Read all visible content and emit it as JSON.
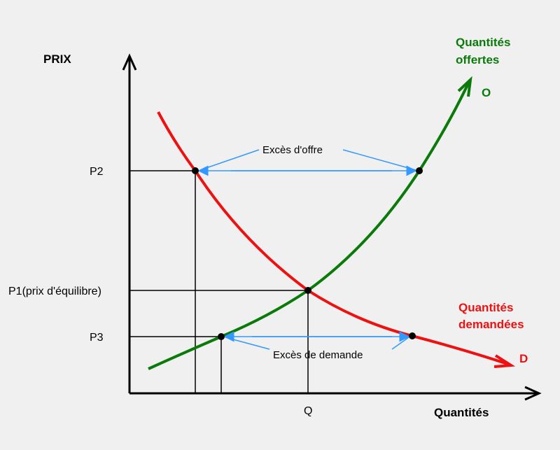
{
  "labels": {
    "y_axis": "PRIX",
    "x_axis": "Quantités",
    "p2": "P2",
    "p1": "P1(prix d'équilibre)",
    "p3": "P3",
    "q": "Q",
    "supply_line1": "Quantités",
    "supply_line2": "offertes",
    "supply_letter": "O",
    "demand_line1": "Quantités",
    "demand_line2": "demandées",
    "demand_letter": "D",
    "excess_supply": "Excès d'offre",
    "excess_demand": "Excès de demande"
  },
  "colors": {
    "background": "#f0f0f0",
    "supply": "#0a7a0a",
    "demand": "#ee1111",
    "arrows": "#3399ff",
    "axes": "#000000"
  }
}
